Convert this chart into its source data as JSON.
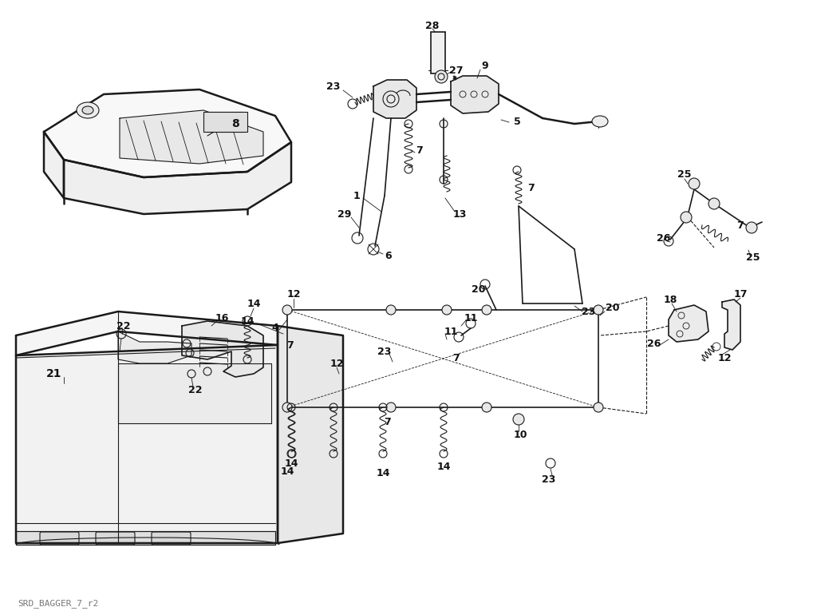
{
  "watermark": "SRD_BAGGER_7_r2",
  "background_color": "#ffffff",
  "line_color": "#1a1a1a",
  "text_color": "#111111",
  "figsize": [
    10.24,
    7.65
  ],
  "dpi": 100
}
